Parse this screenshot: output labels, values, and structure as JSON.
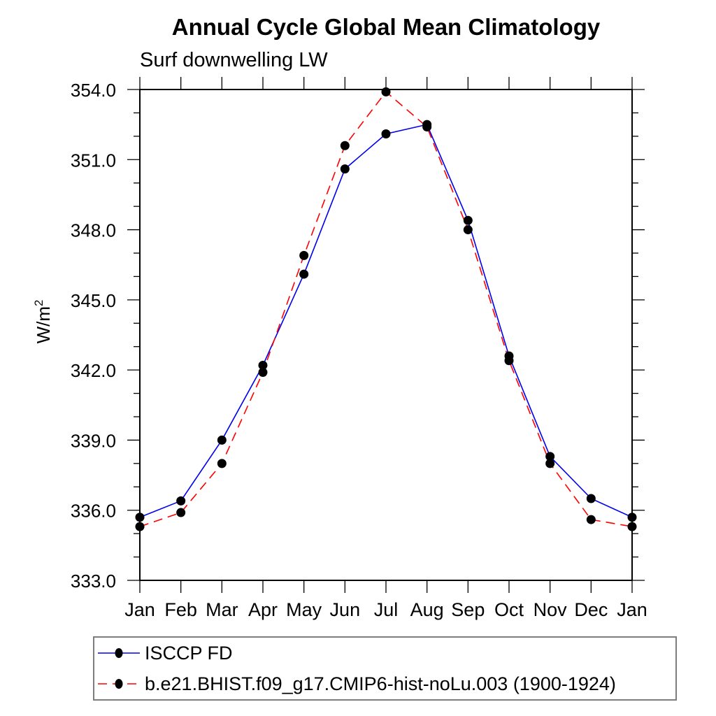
{
  "page": {
    "background": "#ffffff"
  },
  "chart_data": {
    "type": "line",
    "title": "Annual Cycle Global Mean Climatology",
    "subtitle": "Surf downwelling LW",
    "ylabel_base": "W/m",
    "ylabel_sup": "2",
    "categories": [
      "Jan",
      "Feb",
      "Mar",
      "Apr",
      "May",
      "Jun",
      "Jul",
      "Aug",
      "Sep",
      "Oct",
      "Nov",
      "Dec",
      "Jan"
    ],
    "series": [
      {
        "name": "ISCCP FD",
        "color": "#0000ee",
        "style": "solid",
        "marker": "filled-black-circle",
        "values": [
          335.7,
          336.4,
          339.0,
          342.2,
          346.1,
          350.6,
          352.1,
          352.5,
          348.4,
          342.6,
          338.3,
          336.5,
          335.7
        ]
      },
      {
        "name": "b.e21.BHIST.f09_g17.CMIP6-hist-noLu.003 (1900-1924)",
        "color": "#ff0000",
        "style": "dashed",
        "marker": "filled-black-circle",
        "values": [
          335.3,
          335.9,
          338.0,
          341.9,
          346.9,
          351.6,
          353.9,
          352.4,
          348.0,
          342.4,
          338.0,
          335.6,
          335.3
        ]
      }
    ],
    "ylim": [
      333.0,
      354.0
    ],
    "y_major_step": 3.0,
    "y_minor_step": 1.0,
    "ytick_labels": [
      "333.0",
      "336.0",
      "339.0",
      "342.0",
      "345.0",
      "348.0",
      "351.0",
      "354.0"
    ],
    "marker_color": "#000000",
    "axis_color": "#000000",
    "grid": false,
    "legend_position": "bottom-left-box"
  }
}
